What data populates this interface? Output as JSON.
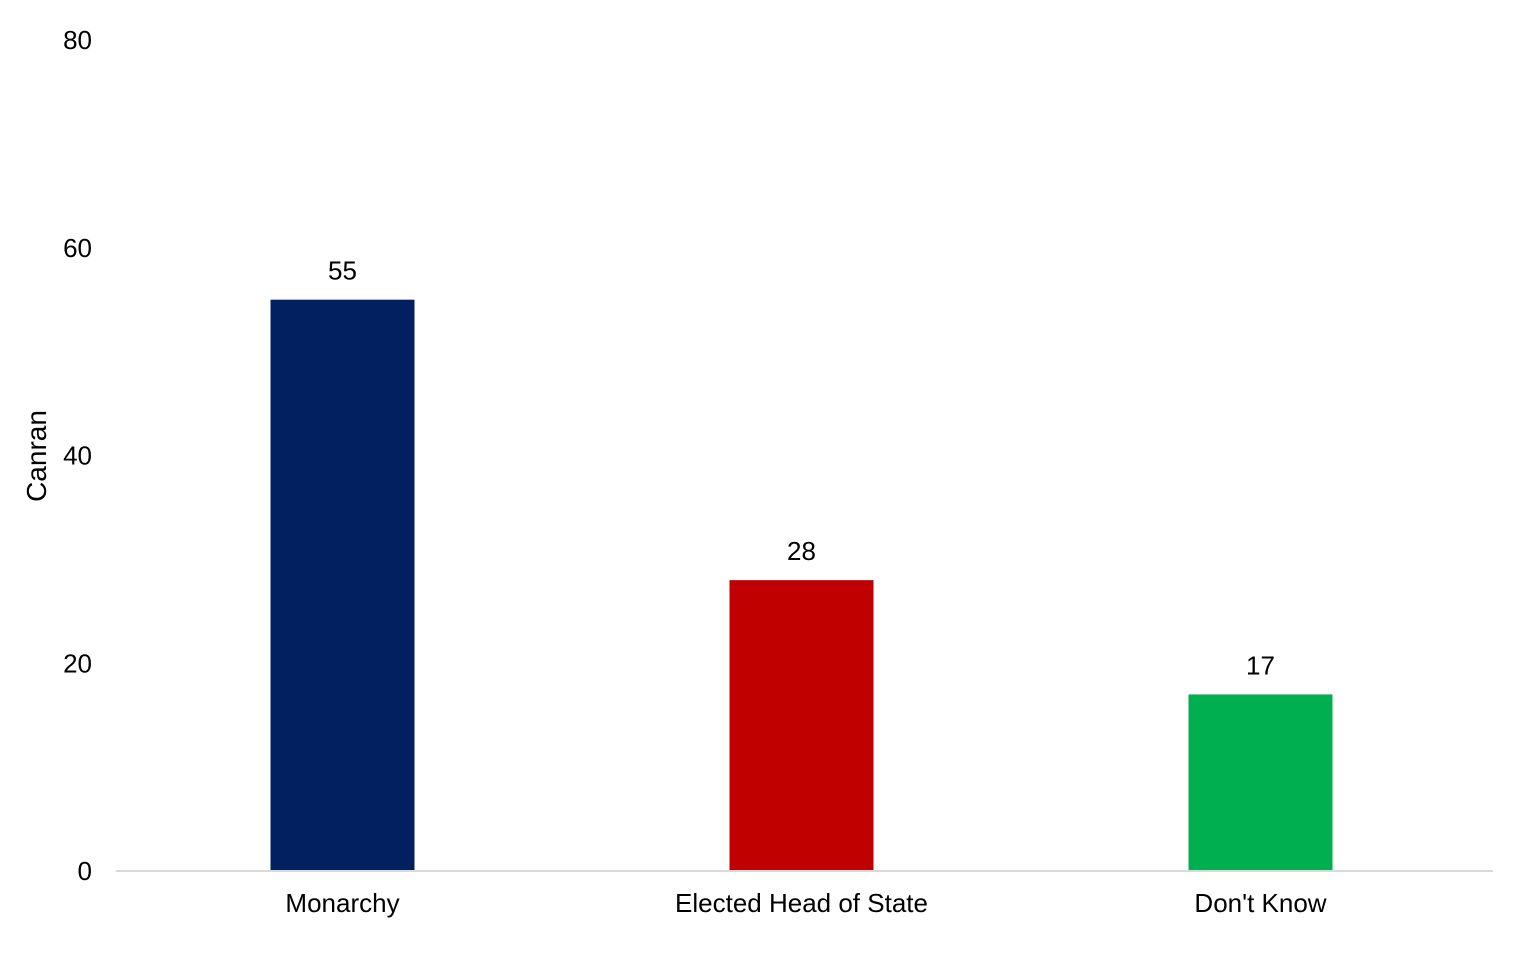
{
  "chart_data": {
    "type": "bar",
    "title": "",
    "xlabel": "",
    "ylabel": "Canran",
    "categories": [
      "Monarchy",
      "Elected Head of State",
      "Don't Know"
    ],
    "values": [
      55,
      28,
      17
    ],
    "data_labels": [
      "55",
      "28",
      "17"
    ],
    "colors": [
      "#02205F",
      "#C00000",
      "#00AF50"
    ],
    "ylim": [
      0,
      80
    ],
    "yticks": [
      0,
      20,
      40,
      60,
      80
    ],
    "grid": false,
    "legend": "none"
  }
}
